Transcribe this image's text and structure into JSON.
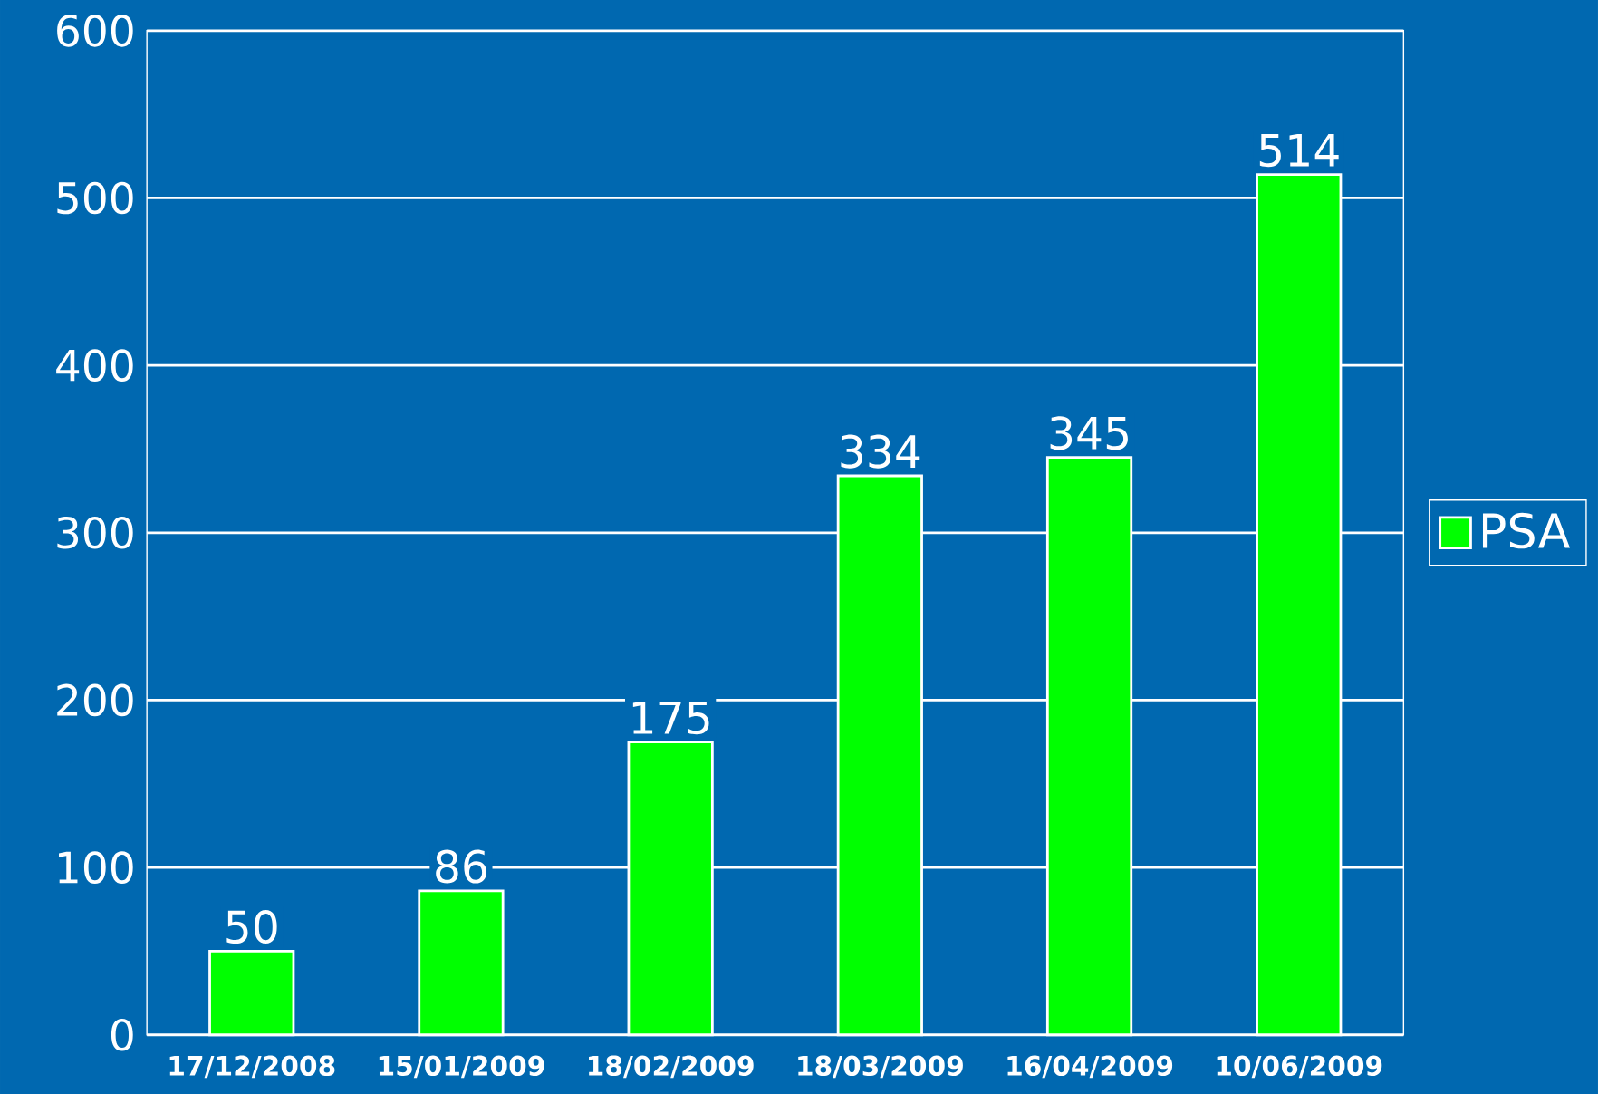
{
  "chart_data": {
    "type": "bar",
    "categories": [
      "17/12/2008",
      "15/01/2009",
      "18/02/2009",
      "18/03/2009",
      "16/04/2009",
      "10/06/2009"
    ],
    "series": [
      {
        "name": "PSA",
        "color": "#00ff00",
        "values": [
          50,
          86,
          175,
          334,
          345,
          514
        ]
      }
    ],
    "ylim": [
      0,
      600
    ],
    "yticks": [
      0,
      100,
      200,
      300,
      400,
      500,
      600
    ],
    "grid": "y",
    "legend": "right",
    "data_labels": true
  }
}
